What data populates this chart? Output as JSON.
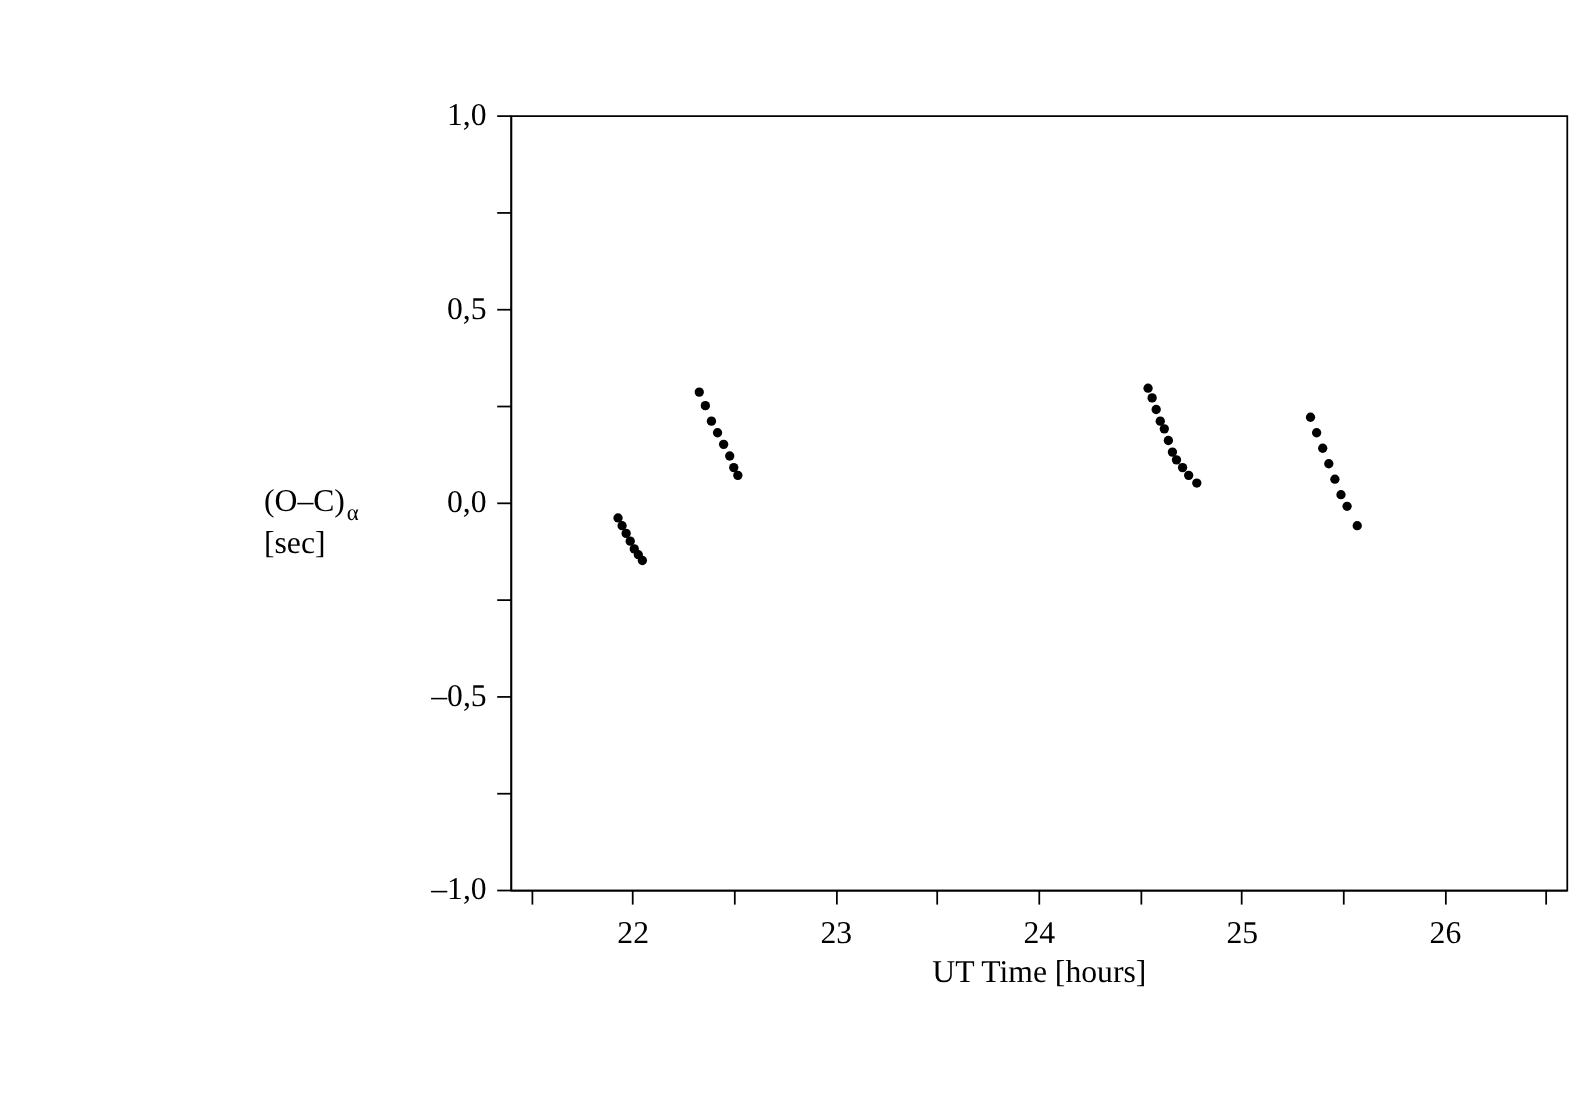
{
  "chart_data": {
    "type": "scatter",
    "xlabel": "UT Time [hours]",
    "ylabel": "(O–C)$_{α}$ [sec]",
    "x": [
      21.93,
      21.95,
      21.97,
      21.99,
      22.01,
      22.03,
      22.05,
      22.33,
      22.36,
      22.39,
      22.42,
      22.45,
      22.48,
      22.5,
      22.52,
      24.54,
      24.56,
      24.58,
      24.6,
      24.62,
      24.64,
      24.66,
      24.68,
      24.71,
      24.74,
      24.78,
      25.34,
      25.37,
      25.4,
      25.43,
      25.46,
      25.49,
      25.52,
      25.57
    ],
    "values": [
      -0.04,
      -0.06,
      -0.08,
      -0.1,
      -0.12,
      -0.135,
      -0.15,
      0.285,
      0.25,
      0.21,
      0.18,
      0.15,
      0.12,
      0.09,
      0.07,
      0.295,
      0.27,
      0.24,
      0.21,
      0.19,
      0.16,
      0.13,
      0.11,
      0.09,
      0.07,
      0.05,
      0.22,
      0.18,
      0.14,
      0.1,
      0.06,
      0.02,
      -0.01,
      -0.06
    ],
    "color": "#000000",
    "marker": "circle",
    "grid": false,
    "xlim": [
      21.4,
      26.6
    ],
    "ylim": [
      -1.0,
      1.0
    ],
    "xticks": [
      {
        "value": 21.5,
        "label": null
      },
      22,
      {
        "value": 22.5,
        "label": null
      },
      23,
      {
        "value": 23.5,
        "label": null
      },
      24,
      {
        "value": 24.5,
        "label": null
      },
      25,
      {
        "value": 25.5,
        "label": null
      },
      26,
      {
        "value": 26.5,
        "label": null
      }
    ],
    "yticks": [
      {
        "value": -1.0,
        "label": "–1,0"
      },
      {
        "value": -0.75,
        "label": null
      },
      {
        "value": -0.5,
        "label": "–0,5"
      },
      {
        "value": -0.25,
        "label": null
      },
      {
        "value": 0.0,
        "label": "0,0"
      },
      {
        "value": 0.25,
        "label": null
      },
      {
        "value": 0.5,
        "label": "0,5"
      },
      {
        "value": 0.75,
        "label": null
      },
      {
        "value": 1.0,
        "label": "1,0"
      }
    ]
  }
}
